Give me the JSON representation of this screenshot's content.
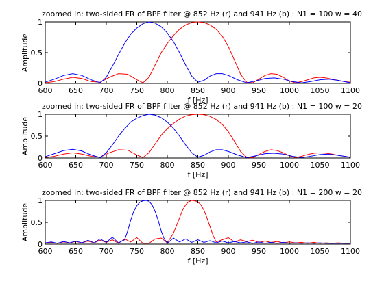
{
  "chart_data": [
    {
      "type": "line",
      "title": "zoomed in: two-sided FR of BPF filter @ 852 Hz (r) and 941 Hz (b) : N1 = 100 w = 40",
      "xlabel": "f [Hz]",
      "ylabel": "Amplitude",
      "xlim": [
        600,
        1100
      ],
      "ylim": [
        0,
        1
      ],
      "xticks": [
        "600",
        "650",
        "700",
        "750",
        "800",
        "850",
        "900",
        "950",
        "1000",
        "1050",
        "1100"
      ],
      "yticks": [
        "0",
        "0.5",
        "1"
      ],
      "grid": false,
      "series": [
        {
          "color": "#ff0000",
          "x": [
            600,
            615,
            630,
            645,
            660,
            675,
            690,
            705,
            720,
            735,
            750,
            760,
            770,
            780,
            790,
            800,
            810,
            820,
            830,
            840,
            850,
            860,
            870,
            880,
            890,
            900,
            910,
            920,
            930,
            940,
            950,
            960,
            970,
            980,
            990,
            1000,
            1010,
            1020,
            1030,
            1040,
            1050,
            1060,
            1070,
            1080,
            1090,
            1100
          ],
          "y": [
            0.01,
            0.03,
            0.07,
            0.1,
            0.08,
            0.03,
            0.02,
            0.1,
            0.16,
            0.15,
            0.06,
            0.01,
            0.1,
            0.3,
            0.5,
            0.65,
            0.78,
            0.88,
            0.95,
            0.99,
            1.0,
            0.99,
            0.95,
            0.88,
            0.77,
            0.6,
            0.38,
            0.15,
            0.02,
            0.01,
            0.07,
            0.13,
            0.16,
            0.15,
            0.1,
            0.04,
            0.01,
            0.03,
            0.06,
            0.09,
            0.1,
            0.09,
            0.07,
            0.05,
            0.03,
            0.02
          ]
        },
        {
          "color": "#0000ff",
          "x": [
            600,
            615,
            630,
            645,
            660,
            675,
            690,
            700,
            710,
            720,
            730,
            740,
            750,
            760,
            770,
            780,
            790,
            800,
            810,
            820,
            830,
            840,
            850,
            860,
            870,
            880,
            890,
            900,
            915,
            930,
            945,
            960,
            975,
            990,
            1005,
            1020,
            1035,
            1050,
            1065,
            1080,
            1095,
            1100
          ],
          "y": [
            0.02,
            0.07,
            0.13,
            0.16,
            0.13,
            0.06,
            0.01,
            0.1,
            0.28,
            0.47,
            0.65,
            0.8,
            0.9,
            0.97,
            1.0,
            0.98,
            0.92,
            0.82,
            0.68,
            0.5,
            0.3,
            0.12,
            0.02,
            0.05,
            0.12,
            0.16,
            0.16,
            0.13,
            0.06,
            0.01,
            0.04,
            0.08,
            0.09,
            0.07,
            0.03,
            0.01,
            0.03,
            0.06,
            0.07,
            0.05,
            0.02,
            0.01
          ]
        }
      ]
    },
    {
      "type": "line",
      "title": "zoomed in: two-sided FR of BPF filter @ 852 Hz (r) and 941 Hz (b) : N1 = 100 w = 20",
      "xlabel": "f [Hz]",
      "ylabel": "Amplitude",
      "xlim": [
        600,
        1100
      ],
      "ylim": [
        0,
        1
      ],
      "xticks": [
        "600",
        "650",
        "700",
        "750",
        "800",
        "850",
        "900",
        "950",
        "1000",
        "1050",
        "1100"
      ],
      "yticks": [
        "0",
        "0.5",
        "1"
      ],
      "grid": false,
      "series": [
        {
          "color": "#ff0000",
          "x": [
            600,
            615,
            630,
            645,
            660,
            675,
            690,
            705,
            720,
            735,
            750,
            760,
            770,
            780,
            790,
            800,
            810,
            820,
            830,
            840,
            850,
            860,
            870,
            880,
            890,
            900,
            910,
            920,
            930,
            940,
            950,
            960,
            970,
            980,
            990,
            1000,
            1010,
            1020,
            1030,
            1040,
            1050,
            1060,
            1070,
            1080,
            1090,
            1100
          ],
          "y": [
            0.01,
            0.04,
            0.09,
            0.12,
            0.09,
            0.04,
            0.02,
            0.12,
            0.19,
            0.18,
            0.07,
            0.01,
            0.12,
            0.32,
            0.52,
            0.67,
            0.79,
            0.89,
            0.96,
            0.99,
            1.0,
            0.99,
            0.95,
            0.88,
            0.77,
            0.6,
            0.38,
            0.15,
            0.02,
            0.01,
            0.08,
            0.15,
            0.19,
            0.17,
            0.12,
            0.05,
            0.01,
            0.04,
            0.08,
            0.11,
            0.12,
            0.11,
            0.09,
            0.06,
            0.04,
            0.02
          ]
        },
        {
          "color": "#0000ff",
          "x": [
            600,
            615,
            630,
            645,
            660,
            675,
            690,
            700,
            710,
            720,
            730,
            740,
            750,
            760,
            770,
            780,
            790,
            800,
            810,
            820,
            830,
            840,
            850,
            860,
            870,
            880,
            890,
            900,
            915,
            930,
            945,
            960,
            975,
            990,
            1005,
            1020,
            1035,
            1050,
            1065,
            1080,
            1095,
            1100
          ],
          "y": [
            0.03,
            0.1,
            0.17,
            0.2,
            0.16,
            0.07,
            0.01,
            0.12,
            0.3,
            0.5,
            0.67,
            0.82,
            0.91,
            0.97,
            1.0,
            0.98,
            0.92,
            0.82,
            0.68,
            0.5,
            0.3,
            0.12,
            0.02,
            0.06,
            0.14,
            0.19,
            0.19,
            0.15,
            0.07,
            0.01,
            0.05,
            0.1,
            0.11,
            0.09,
            0.04,
            0.01,
            0.04,
            0.08,
            0.09,
            0.06,
            0.03,
            0.01
          ]
        }
      ]
    },
    {
      "type": "line",
      "title": "zoomed in: two-sided FR of BPF filter @ 852 Hz (r) and 941 Hz (b) : N1 = 200 w = 20",
      "xlabel": "f [Hz]",
      "ylabel": "Amplitude",
      "xlim": [
        600,
        1100
      ],
      "ylim": [
        0,
        1
      ],
      "xticks": [
        "600",
        "650",
        "700",
        "750",
        "800",
        "850",
        "900",
        "950",
        "1000",
        "1050",
        "1100"
      ],
      "yticks": [
        "0",
        "0.5",
        "1"
      ],
      "grid": false,
      "series": [
        {
          "color": "#ff0000",
          "x": [
            600,
            610,
            620,
            630,
            640,
            650,
            660,
            670,
            680,
            690,
            700,
            710,
            720,
            730,
            740,
            750,
            760,
            770,
            780,
            790,
            800,
            810,
            820,
            825,
            830,
            835,
            840,
            845,
            850,
            855,
            860,
            865,
            870,
            875,
            880,
            890,
            900,
            910,
            920,
            930,
            940,
            950,
            960,
            970,
            980,
            990,
            1000,
            1010,
            1020,
            1030,
            1040,
            1050,
            1060,
            1070,
            1080,
            1090,
            1100
          ],
          "y": [
            0.02,
            0.04,
            0.02,
            0.05,
            0.03,
            0.06,
            0.03,
            0.07,
            0.03,
            0.09,
            0.04,
            0.1,
            0.02,
            0.12,
            0.05,
            0.15,
            0.02,
            0.02,
            0.12,
            0.14,
            0.03,
            0.25,
            0.6,
            0.78,
            0.9,
            0.97,
            1.0,
            0.99,
            0.97,
            0.9,
            0.78,
            0.6,
            0.4,
            0.2,
            0.05,
            0.1,
            0.15,
            0.05,
            0.1,
            0.06,
            0.09,
            0.04,
            0.07,
            0.04,
            0.06,
            0.03,
            0.05,
            0.03,
            0.04,
            0.02,
            0.04,
            0.02,
            0.03,
            0.02,
            0.03,
            0.02,
            0.02
          ]
        },
        {
          "color": "#0000ff",
          "x": [
            600,
            610,
            620,
            630,
            640,
            650,
            660,
            670,
            680,
            690,
            700,
            710,
            720,
            730,
            735,
            740,
            745,
            750,
            755,
            760,
            765,
            770,
            775,
            780,
            785,
            790,
            795,
            800,
            810,
            820,
            830,
            840,
            850,
            860,
            870,
            880,
            890,
            900,
            910,
            920,
            930,
            940,
            950,
            960,
            970,
            980,
            990,
            1000,
            1010,
            1020,
            1030,
            1040,
            1050,
            1060,
            1070,
            1080,
            1090,
            1100
          ],
          "y": [
            0.03,
            0.05,
            0.02,
            0.06,
            0.03,
            0.07,
            0.03,
            0.09,
            0.03,
            0.12,
            0.04,
            0.16,
            0.03,
            0.1,
            0.3,
            0.55,
            0.75,
            0.88,
            0.96,
            0.99,
            1.0,
            0.98,
            0.9,
            0.75,
            0.55,
            0.3,
            0.12,
            0.02,
            0.14,
            0.05,
            0.12,
            0.04,
            0.1,
            0.04,
            0.08,
            0.03,
            0.07,
            0.03,
            0.06,
            0.03,
            0.05,
            0.02,
            0.05,
            0.02,
            0.04,
            0.02,
            0.04,
            0.02,
            0.03,
            0.02,
            0.03,
            0.02,
            0.03,
            0.02,
            0.02,
            0.02,
            0.02,
            0.02
          ]
        }
      ]
    }
  ]
}
